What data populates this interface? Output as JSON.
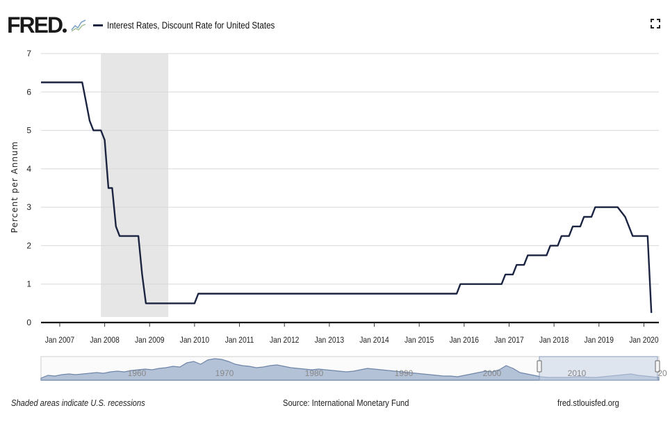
{
  "header": {
    "logo_text": "FRED",
    "series_title": "Interest Rates, Discount Rate for United States"
  },
  "footer": {
    "recession_note": "Shaded areas indicate U.S. recessions",
    "source": "Source: International Monetary Fund",
    "site": "fred.stlouisfed.org"
  },
  "colors": {
    "series": "#1b2440",
    "recession": "#e6e6e6",
    "grid": "#d8d8d8",
    "navigator_fill": "#b4c2d8",
    "navigator_line": "#6e85a8",
    "navigator_selection": "#c9d4e6"
  },
  "icons": {
    "logo": "line-chart-icon",
    "fullscreen": "fullscreen-icon"
  },
  "chart_data": {
    "type": "line",
    "title": "Interest Rates, Discount Rate for United States",
    "ylabel": "Percent per Annum",
    "xlabel": "",
    "ylim": [
      0,
      7
    ],
    "yticks": [
      0,
      1,
      2,
      3,
      4,
      5,
      6,
      7
    ],
    "xlim": [
      "2006-08",
      "2020-05"
    ],
    "xticks": [
      "Jan 2007",
      "Jan 2008",
      "Jan 2009",
      "Jan 2010",
      "Jan 2011",
      "Jan 2012",
      "Jan 2013",
      "Jan 2014",
      "Jan 2015",
      "Jan 2016",
      "Jan 2017",
      "Jan 2018",
      "Jan 2019",
      "Jan 2020"
    ],
    "grid": true,
    "legend": "top-left",
    "recessions": [
      [
        "2007-12",
        "2009-06"
      ]
    ],
    "series": [
      {
        "name": "Interest Rates, Discount Rate for United States",
        "x": [
          "2006-08",
          "2007-07",
          "2007-08",
          "2007-09",
          "2007-10",
          "2007-12",
          "2008-01",
          "2008-02",
          "2008-03",
          "2008-04",
          "2008-05",
          "2008-10",
          "2008-11",
          "2008-12",
          "2009-12",
          "2010-01",
          "2010-02",
          "2015-11",
          "2015-12",
          "2016-11",
          "2016-12",
          "2017-02",
          "2017-03",
          "2017-05",
          "2017-06",
          "2017-11",
          "2017-12",
          "2018-02",
          "2018-03",
          "2018-05",
          "2018-06",
          "2018-08",
          "2018-09",
          "2018-11",
          "2018-12",
          "2019-06",
          "2019-08",
          "2019-09",
          "2019-10",
          "2020-02",
          "2020-03"
        ],
        "y": [
          6.25,
          6.25,
          5.75,
          5.25,
          5.0,
          5.0,
          4.75,
          3.5,
          3.5,
          2.5,
          2.25,
          2.25,
          1.25,
          0.5,
          0.5,
          0.5,
          0.75,
          0.75,
          1.0,
          1.0,
          1.25,
          1.25,
          1.5,
          1.5,
          1.75,
          1.75,
          2.0,
          2.0,
          2.25,
          2.25,
          2.5,
          2.5,
          2.75,
          2.75,
          3.0,
          3.0,
          2.75,
          2.5,
          2.25,
          2.25,
          0.25
        ]
      }
    ],
    "navigator": {
      "labels": [
        "1960",
        "1970",
        "1980",
        "1990",
        "2000",
        "2010",
        "20"
      ]
    }
  }
}
